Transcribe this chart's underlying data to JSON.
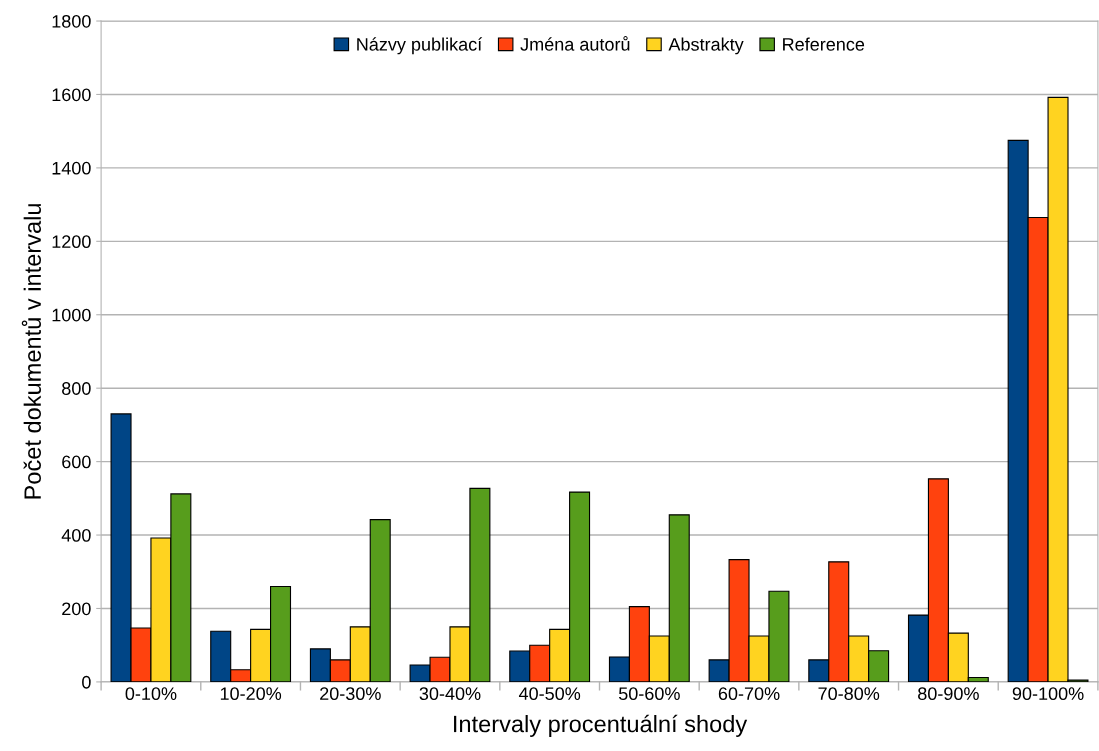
{
  "chart_data": {
    "type": "bar",
    "xlabel": "Intervaly procentuální shody",
    "ylabel": "Počet dokumentů v intervalu",
    "categories": [
      "0-10%",
      "10-20%",
      "20-30%",
      "30-40%",
      "40-50%",
      "50-60%",
      "60-70%",
      "70-80%",
      "80-90%",
      "90-100%"
    ],
    "series": [
      {
        "name": "Názvy publikací",
        "color": "#004586",
        "values": [
          730,
          138,
          90,
          46,
          84,
          68,
          60,
          60,
          182,
          1475
        ]
      },
      {
        "name": "Jména autorů",
        "color": "#ff420e",
        "values": [
          147,
          33,
          60,
          67,
          100,
          205,
          333,
          327,
          553,
          1265
        ]
      },
      {
        "name": "Abstrakty",
        "color": "#ffd320",
        "values": [
          392,
          143,
          150,
          150,
          143,
          125,
          125,
          125,
          133,
          1592
        ]
      },
      {
        "name": "Reference",
        "color": "#579d1c",
        "values": [
          512,
          260,
          442,
          527,
          517,
          455,
          247,
          85,
          12,
          5
        ]
      }
    ],
    "ylim": [
      0,
      1800
    ],
    "yticks": [
      0,
      200,
      400,
      600,
      800,
      1000,
      1200,
      1400,
      1600,
      1800
    ],
    "grid": "y",
    "legend": "top"
  }
}
